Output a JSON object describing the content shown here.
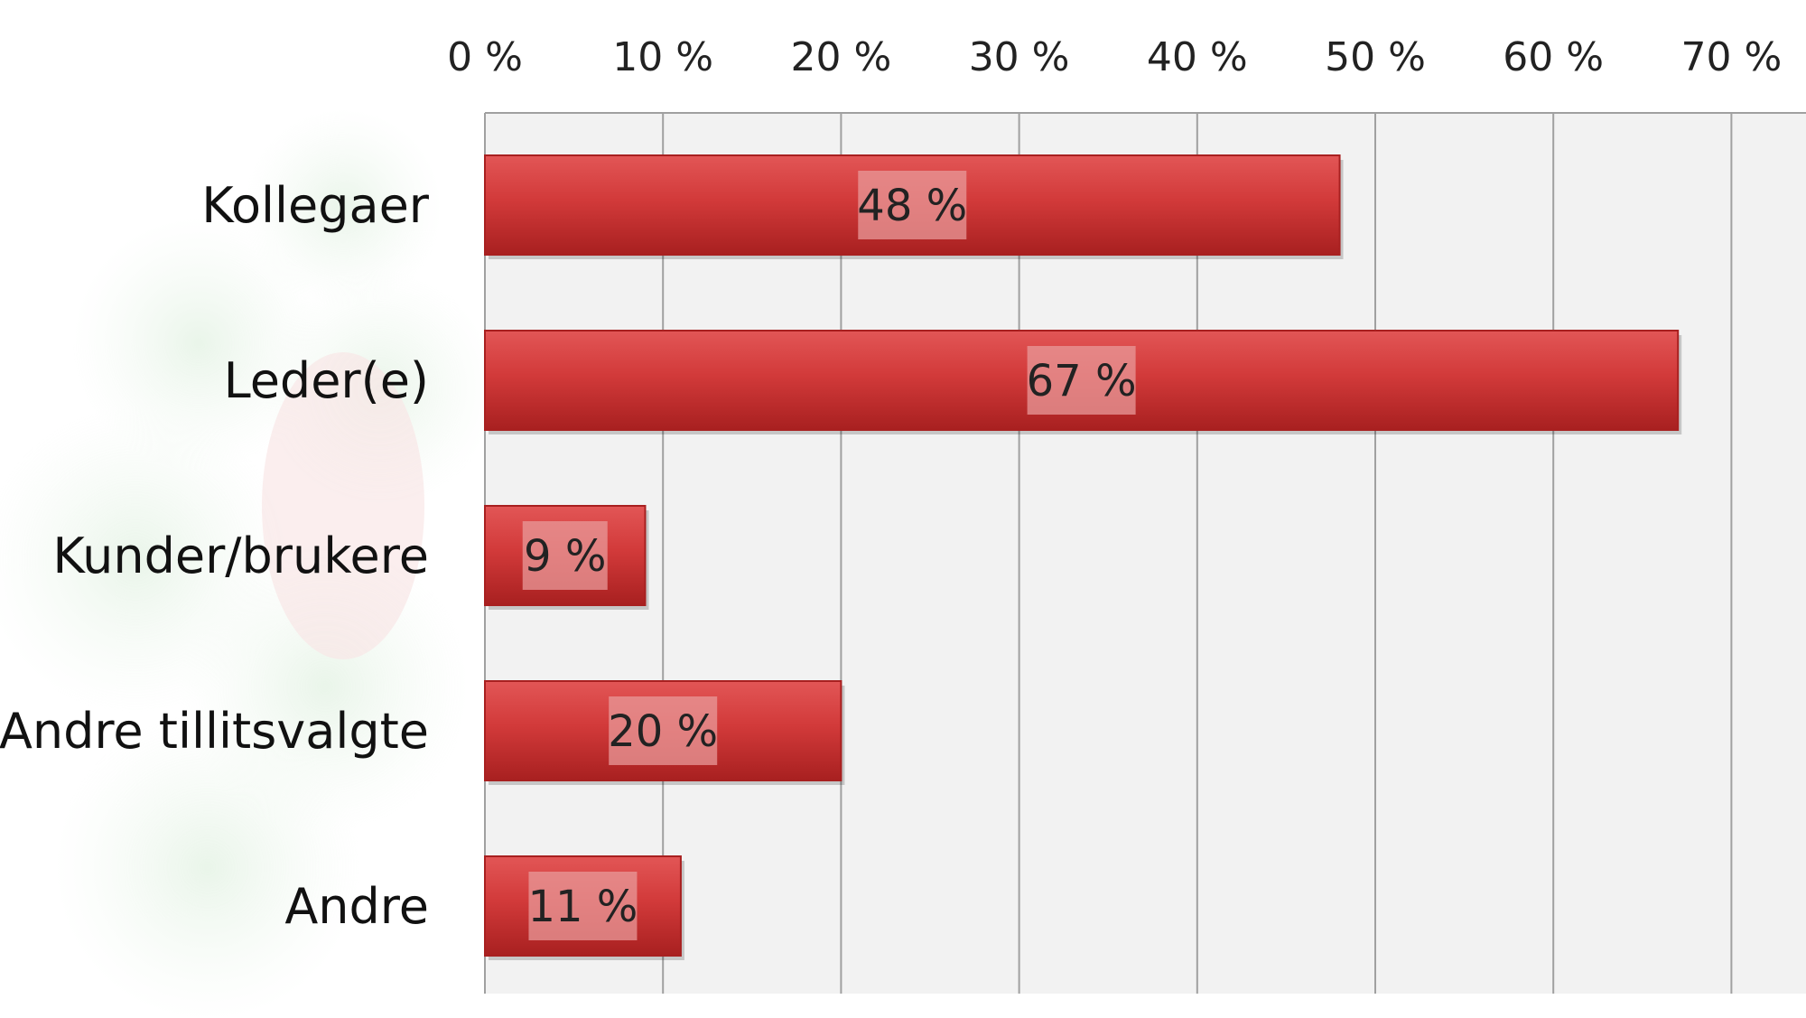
{
  "chart_data": {
    "type": "bar",
    "orientation": "horizontal",
    "categories": [
      "Kollegaer",
      "Leder(e)",
      "Kunder/brukere",
      "Andre tillitsvalgte",
      "Andre"
    ],
    "values": [
      48,
      67,
      9,
      20,
      11
    ],
    "data_labels": [
      "48 %",
      "67 %",
      "9 %",
      "20 %",
      "11 %"
    ],
    "x_ticks": [
      0,
      10,
      20,
      30,
      40,
      50,
      60,
      70
    ],
    "x_tick_labels": [
      "0 %",
      "10 %",
      "20 %",
      "30 %",
      "40 %",
      "50 %",
      "60 %",
      "70 %"
    ],
    "xlim": [
      0,
      70
    ],
    "x_axis_position": "top",
    "grid": true,
    "legend": "none",
    "title": "",
    "xlabel": "",
    "ylabel": "",
    "colors": {
      "bar": "#d23a3a",
      "bar_dark": "#a82020",
      "plot_bg": "#f2f2f2",
      "gridline": "#a0a0a0",
      "label_box": "#e89a9a"
    }
  }
}
